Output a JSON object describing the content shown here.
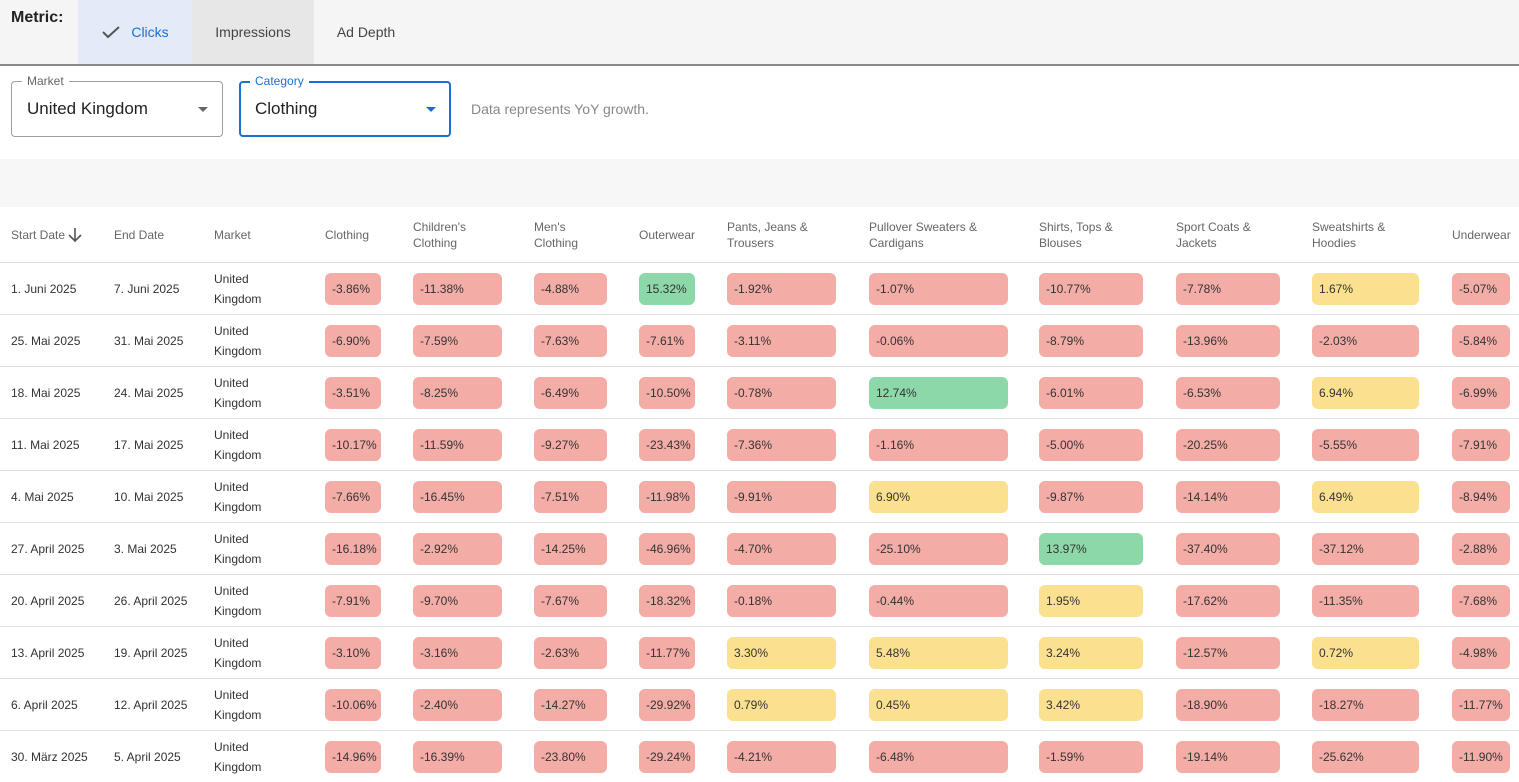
{
  "metric": {
    "label": "Metric:",
    "tabs": [
      {
        "label": "Clicks",
        "selected": true,
        "icon": "check-icon"
      },
      {
        "label": "Impressions",
        "selected": false
      },
      {
        "label": "Ad Depth",
        "selected": false
      }
    ]
  },
  "filters": {
    "market": {
      "legend": "Market",
      "value": "United Kingdom"
    },
    "category": {
      "legend": "Category",
      "value": "Clothing"
    },
    "hint": "Data represents YoY growth."
  },
  "colors": {
    "negative": "#f4aca7",
    "moderate": "#fbe08f",
    "positive": "#8dd8a8",
    "accent": "#1a6fd4"
  },
  "table": {
    "columns": [
      "Start Date",
      "End Date",
      "Market",
      "Clothing",
      "Children's Clothing",
      "Men's Clothing",
      "Outerwear",
      "Pants, Jeans & Trousers",
      "Pullover Sweaters & Cardigans",
      "Shirts, Tops & Blouses",
      "Sport Coats & Jackets",
      "Sweatshirts & Hoodies",
      "Underwear"
    ],
    "sort_icon": "arrow-down-icon",
    "rows": [
      {
        "start": "1. Juni 2025",
        "end": "7. Juni 2025",
        "market": "United Kingdom",
        "values": [
          "-3.86%",
          "-11.38%",
          "-4.88%",
          "15.32%",
          "-1.92%",
          "-1.07%",
          "-10.77%",
          "-7.78%",
          "1.67%",
          "-5.07%"
        ]
      },
      {
        "start": "25. Mai 2025",
        "end": "31. Mai 2025",
        "market": "United Kingdom",
        "values": [
          "-6.90%",
          "-7.59%",
          "-7.63%",
          "-7.61%",
          "-3.11%",
          "-0.06%",
          "-8.79%",
          "-13.96%",
          "-2.03%",
          "-5.84%"
        ]
      },
      {
        "start": "18. Mai 2025",
        "end": "24. Mai 2025",
        "market": "United Kingdom",
        "values": [
          "-3.51%",
          "-8.25%",
          "-6.49%",
          "-10.50%",
          "-0.78%",
          "12.74%",
          "-6.01%",
          "-6.53%",
          "6.94%",
          "-6.99%"
        ]
      },
      {
        "start": "11. Mai 2025",
        "end": "17. Mai 2025",
        "market": "United Kingdom",
        "values": [
          "-10.17%",
          "-11.59%",
          "-9.27%",
          "-23.43%",
          "-7.36%",
          "-1.16%",
          "-5.00%",
          "-20.25%",
          "-5.55%",
          "-7.91%"
        ]
      },
      {
        "start": "4. Mai 2025",
        "end": "10. Mai 2025",
        "market": "United Kingdom",
        "values": [
          "-7.66%",
          "-16.45%",
          "-7.51%",
          "-11.98%",
          "-9.91%",
          "6.90%",
          "-9.87%",
          "-14.14%",
          "6.49%",
          "-8.94%"
        ]
      },
      {
        "start": "27. April 2025",
        "end": "3. Mai 2025",
        "market": "United Kingdom",
        "values": [
          "-16.18%",
          "-2.92%",
          "-14.25%",
          "-46.96%",
          "-4.70%",
          "-25.10%",
          "13.97%",
          "-37.40%",
          "-37.12%",
          "-2.88%"
        ]
      },
      {
        "start": "20. April 2025",
        "end": "26. April 2025",
        "market": "United Kingdom",
        "values": [
          "-7.91%",
          "-9.70%",
          "-7.67%",
          "-18.32%",
          "-0.18%",
          "-0.44%",
          "1.95%",
          "-17.62%",
          "-11.35%",
          "-7.68%"
        ]
      },
      {
        "start": "13. April 2025",
        "end": "19. April 2025",
        "market": "United Kingdom",
        "values": [
          "-3.10%",
          "-3.16%",
          "-2.63%",
          "-11.77%",
          "3.30%",
          "5.48%",
          "3.24%",
          "-12.57%",
          "0.72%",
          "-4.98%"
        ]
      },
      {
        "start": "6. April 2025",
        "end": "12. April 2025",
        "market": "United Kingdom",
        "values": [
          "-10.06%",
          "-2.40%",
          "-14.27%",
          "-29.92%",
          "0.79%",
          "0.45%",
          "3.42%",
          "-18.90%",
          "-18.27%",
          "-11.77%"
        ]
      },
      {
        "start": "30. März 2025",
        "end": "5. April 2025",
        "market": "United Kingdom",
        "values": [
          "-14.96%",
          "-16.39%",
          "-23.80%",
          "-29.24%",
          "-4.21%",
          "-6.48%",
          "-1.59%",
          "-19.14%",
          "-25.62%",
          "-11.90%"
        ]
      }
    ]
  }
}
